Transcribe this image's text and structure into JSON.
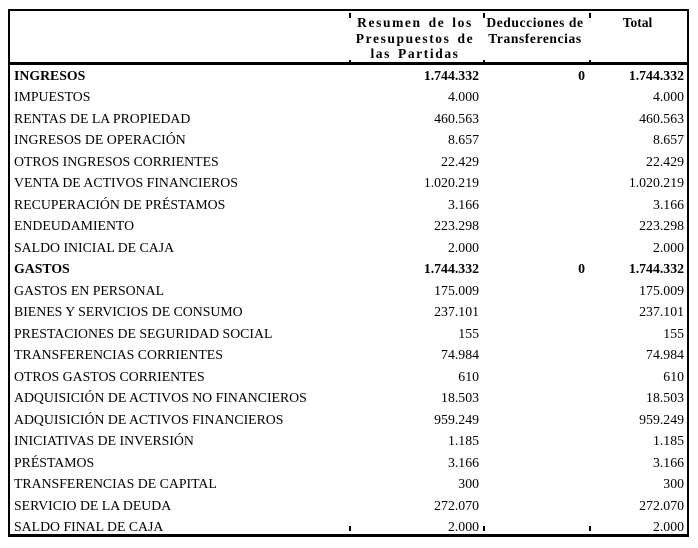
{
  "page": {
    "background_color": "#ffffff",
    "text_color": "#000000",
    "border_color": "#000000"
  },
  "table": {
    "headers": {
      "row_label": "",
      "resumen": "Resumen de los\nPresupuestos de\nlas Partidas",
      "deducciones": "Deducciones de\nTransferencias",
      "total": "Total"
    },
    "rows": [
      {
        "label": "INGRESOS",
        "resumen": "1.744.332",
        "deducciones": "0",
        "total": "1.744.332",
        "bold": true
      },
      {
        "label": "IMPUESTOS",
        "resumen": "4.000",
        "deducciones": "",
        "total": "4.000",
        "bold": false
      },
      {
        "label": "RENTAS DE LA PROPIEDAD",
        "resumen": "460.563",
        "deducciones": "",
        "total": "460.563",
        "bold": false
      },
      {
        "label": "INGRESOS DE OPERACIÓN",
        "resumen": "8.657",
        "deducciones": "",
        "total": "8.657",
        "bold": false
      },
      {
        "label": "OTROS INGRESOS CORRIENTES",
        "resumen": "22.429",
        "deducciones": "",
        "total": "22.429",
        "bold": false
      },
      {
        "label": "VENTA DE ACTIVOS FINANCIEROS",
        "resumen": "1.020.219",
        "deducciones": "",
        "total": "1.020.219",
        "bold": false
      },
      {
        "label": "RECUPERACIÓN DE PRÉSTAMOS",
        "resumen": "3.166",
        "deducciones": "",
        "total": "3.166",
        "bold": false
      },
      {
        "label": "ENDEUDAMIENTO",
        "resumen": "223.298",
        "deducciones": "",
        "total": "223.298",
        "bold": false
      },
      {
        "label": "SALDO INICIAL DE CAJA",
        "resumen": "2.000",
        "deducciones": "",
        "total": "2.000",
        "bold": false
      },
      {
        "label": "GASTOS",
        "resumen": "1.744.332",
        "deducciones": "0",
        "total": "1.744.332",
        "bold": true
      },
      {
        "label": "GASTOS EN PERSONAL",
        "resumen": "175.009",
        "deducciones": "",
        "total": "175.009",
        "bold": false
      },
      {
        "label": "BIENES Y SERVICIOS DE CONSUMO",
        "resumen": "237.101",
        "deducciones": "",
        "total": "237.101",
        "bold": false
      },
      {
        "label": "PRESTACIONES DE SEGURIDAD SOCIAL",
        "resumen": "155",
        "deducciones": "",
        "total": "155",
        "bold": false
      },
      {
        "label": "TRANSFERENCIAS CORRIENTES",
        "resumen": "74.984",
        "deducciones": "",
        "total": "74.984",
        "bold": false
      },
      {
        "label": "OTROS GASTOS CORRIENTES",
        "resumen": "610",
        "deducciones": "",
        "total": "610",
        "bold": false
      },
      {
        "label": "ADQUISICIÓN DE ACTIVOS NO FINANCIEROS",
        "resumen": "18.503",
        "deducciones": "",
        "total": "18.503",
        "bold": false
      },
      {
        "label": "ADQUISICIÓN DE ACTIVOS FINANCIEROS",
        "resumen": "959.249",
        "deducciones": "",
        "total": "959.249",
        "bold": false
      },
      {
        "label": "INICIATIVAS DE INVERSIÓN",
        "resumen": "1.185",
        "deducciones": "",
        "total": "1.185",
        "bold": false
      },
      {
        "label": "PRÉSTAMOS",
        "resumen": "3.166",
        "deducciones": "",
        "total": "3.166",
        "bold": false
      },
      {
        "label": "TRANSFERENCIAS DE CAPITAL",
        "resumen": "300",
        "deducciones": "",
        "total": "300",
        "bold": false
      },
      {
        "label": "SERVICIO DE LA DEUDA",
        "resumen": "272.070",
        "deducciones": "",
        "total": "272.070",
        "bold": false
      },
      {
        "label": "SALDO FINAL DE CAJA",
        "resumen": "2.000",
        "deducciones": "",
        "total": "2.000",
        "bold": false
      }
    ]
  }
}
